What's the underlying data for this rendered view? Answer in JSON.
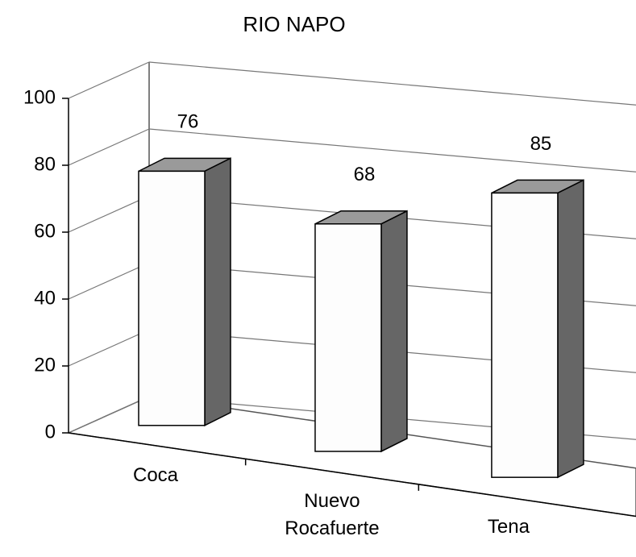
{
  "chart_data": {
    "type": "bar3d",
    "title": "RIO NAPO",
    "categories": [
      "Coca",
      "Nuevo Rocafuerte",
      "Tena"
    ],
    "values": [
      76,
      68,
      85
    ],
    "ylim": [
      0,
      100
    ],
    "yticks": [
      0,
      20,
      40,
      60,
      80,
      100
    ],
    "grid": true,
    "colors": {
      "front": "#fdfdfd",
      "side": "#666666",
      "top": "#9a9a9a"
    }
  }
}
